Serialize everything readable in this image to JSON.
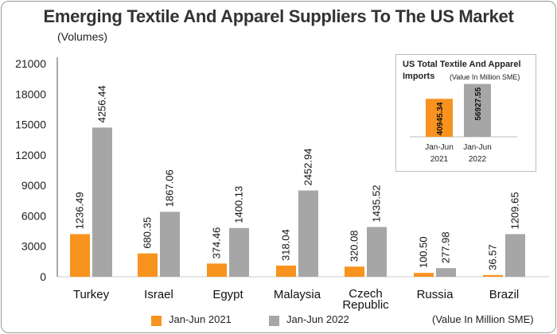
{
  "chart_data": [
    {
      "type": "bar",
      "title": "Emerging Textile And Apparel Suppliers To The US Market",
      "ylabel": "(Volumes)",
      "ylim": [
        0,
        21000
      ],
      "yticks": [
        "0",
        "3000",
        "6000",
        "9000",
        "12000",
        "15000",
        "18000",
        "21000"
      ],
      "categories": [
        "Turkey",
        "Israel",
        "Egypt",
        "Malaysia",
        "Czech Republic",
        "Russia",
        "Brazil"
      ],
      "series": [
        {
          "name": "Jan-Jun 2021",
          "color": "#f7931e",
          "values": [
            4200,
            2300,
            1300,
            1100,
            1000,
            380,
            170
          ],
          "labels": [
            "1236.49",
            "680.35",
            "374.46",
            "318.04",
            "320.08",
            "100.50",
            "36.57"
          ]
        },
        {
          "name": "Jan-Jun 2022",
          "color": "#a6a6a6",
          "values": [
            14700,
            6400,
            4800,
            8500,
            4900,
            850,
            4200
          ],
          "labels": [
            "4256.44",
            "1867.06",
            "1400.13",
            "2452.94",
            "1435.52",
            "277.98",
            "1209.65"
          ]
        }
      ],
      "legend_position": "bottom",
      "unit_note": "(Value In Million SME)"
    },
    {
      "type": "bar",
      "title": "US Total Textile And Apparel Imports",
      "subtitle": "(Value In Million SME)",
      "categories": [
        "Jan-Jun 2021",
        "Jan-Jun 2022"
      ],
      "values": [
        40945.34,
        56927.55
      ],
      "labels": [
        "40945.34",
        "56927.55"
      ],
      "colors": [
        "#f7931e",
        "#a6a6a6"
      ],
      "ylim": [
        0,
        60000
      ]
    }
  ],
  "inset_title_line1": "US Total Textile And Apparel",
  "inset_title_line2": "Imports",
  "inset_cat_1_line1": "Jan-Jun",
  "inset_cat_1_line2": "2021",
  "inset_cat_2_line1": "Jan-Jun",
  "inset_cat_2_line2": "2022",
  "cat_czech_line1": "Czech",
  "cat_czech_line2": "Republic"
}
